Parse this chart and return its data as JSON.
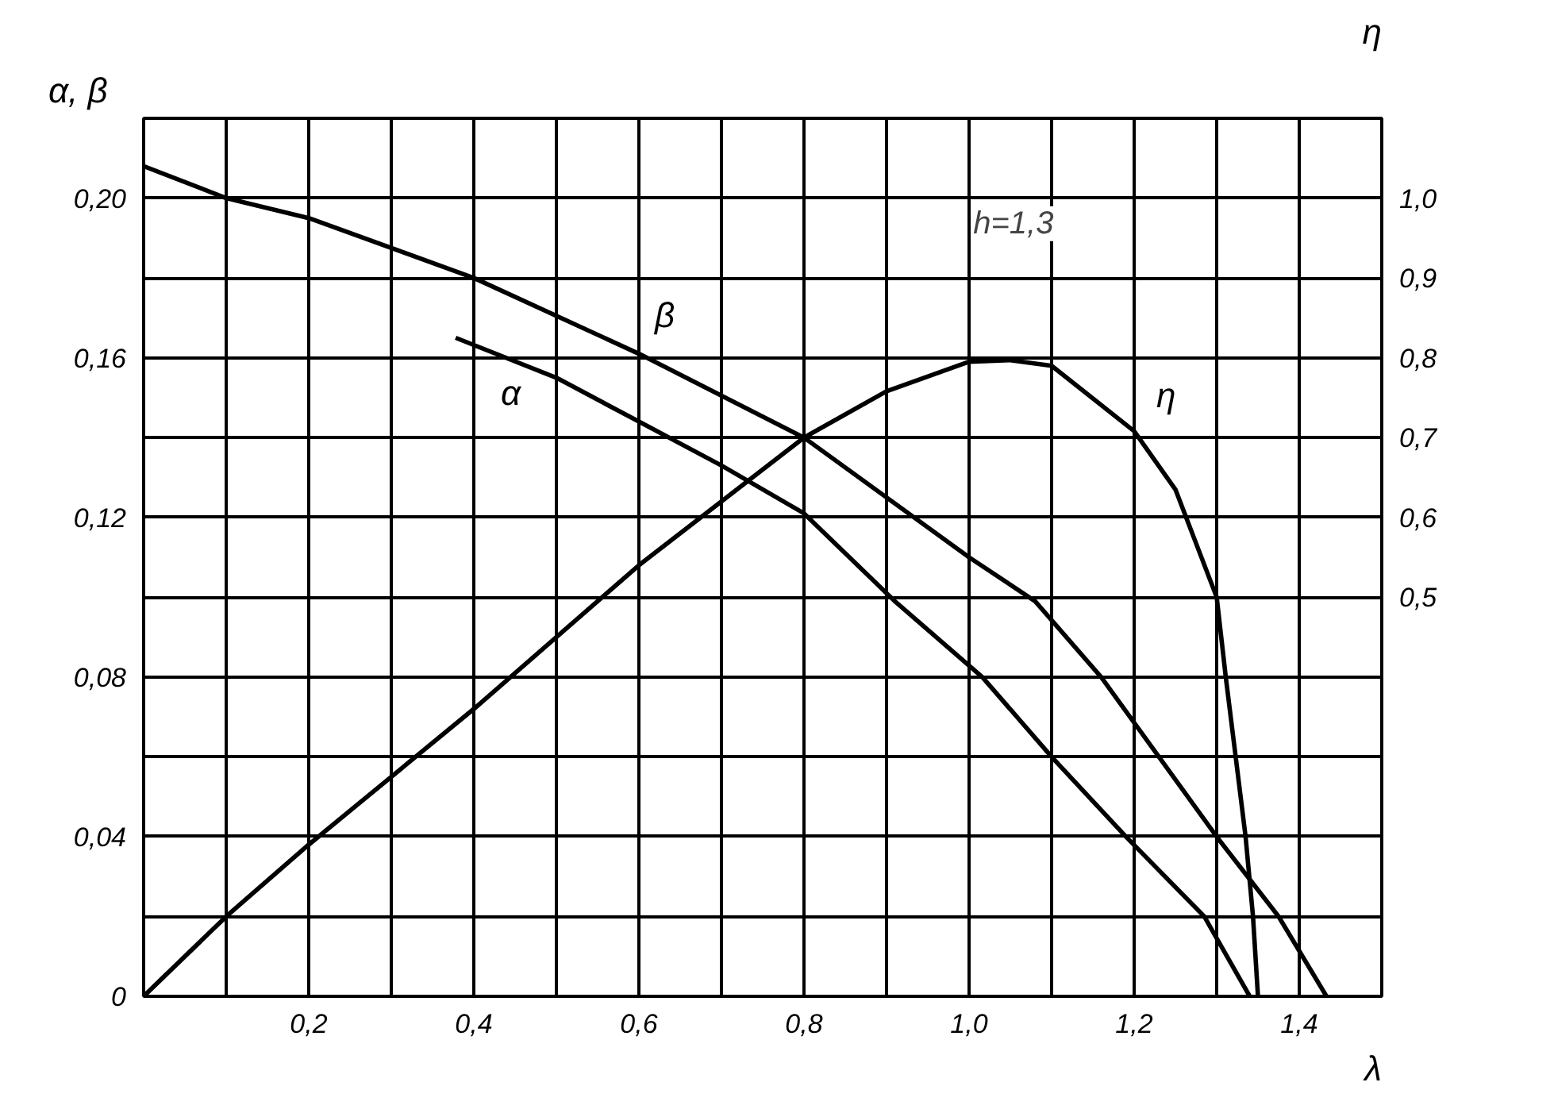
{
  "chart_data": {
    "type": "line",
    "xlabel": "λ",
    "ylabel": "α, β",
    "y2label": "η",
    "annotations": [
      "h=1,3"
    ],
    "xlim": [
      0,
      1.5
    ],
    "ylim": [
      0,
      0.22
    ],
    "y2lim": [
      0,
      1.1
    ],
    "xticks": [
      {
        "value": 0.1,
        "label": null
      },
      {
        "value": 0.2,
        "label": "0,2"
      },
      {
        "value": 0.3,
        "label": null
      },
      {
        "value": 0.4,
        "label": "0,4"
      },
      {
        "value": 0.5,
        "label": null
      },
      {
        "value": 0.6,
        "label": "0,6"
      },
      {
        "value": 0.7,
        "label": null
      },
      {
        "value": 0.8,
        "label": "0,8"
      },
      {
        "value": 0.9,
        "label": null
      },
      {
        "value": 1.0,
        "label": "1,0"
      },
      {
        "value": 1.1,
        "label": null
      },
      {
        "value": 1.2,
        "label": "1,2"
      },
      {
        "value": 1.3,
        "label": null
      },
      {
        "value": 1.4,
        "label": "1,4"
      }
    ],
    "yticks": [
      0,
      {
        "value": 0.02,
        "label": null
      },
      {
        "value": 0.04,
        "label": "0,04"
      },
      {
        "value": 0.06,
        "label": null
      },
      {
        "value": 0.08,
        "label": "0,08"
      },
      {
        "value": 0.1,
        "label": null
      },
      {
        "value": 0.12,
        "label": "0,12"
      },
      {
        "value": 0.14,
        "label": null
      },
      {
        "value": 0.16,
        "label": "0,16"
      },
      {
        "value": 0.18,
        "label": null
      },
      {
        "value": 0.2,
        "label": "0,20"
      }
    ],
    "y2ticks": [
      {
        "value": 0.5,
        "label": "0,5"
      },
      {
        "value": 0.6,
        "label": "0,6"
      },
      {
        "value": 0.7,
        "label": "0,7"
      },
      {
        "value": 0.8,
        "label": "0,8"
      },
      {
        "value": 0.9,
        "label": "0,9"
      },
      {
        "value": 1.0,
        "label": "1,0"
      }
    ],
    "grid": true,
    "marker": "none",
    "line_style": "solid",
    "series": [
      {
        "name": "β",
        "color": "#000000",
        "x": [
          0,
          0.1,
          0.2,
          0.4,
          0.6,
          0.8,
          1.0,
          1.08,
          1.16,
          1.23,
          1.3,
          1.375,
          1.433
        ],
        "values": [
          0.208,
          0.2,
          0.195,
          0.18,
          0.161,
          0.14,
          0.11,
          0.099,
          0.08,
          0.06,
          0.04,
          0.02,
          0
        ]
      },
      {
        "name": "α",
        "color": "#000000",
        "x": [
          0.378,
          0.5,
          0.6,
          0.7,
          0.8,
          0.91,
          1.016,
          1.1,
          1.19,
          1.285,
          1.34
        ],
        "values": [
          0.165,
          0.155,
          0.144,
          0.133,
          0.121,
          0.099,
          0.08,
          0.06,
          0.04,
          0.02,
          0
        ]
      },
      {
        "name": "η",
        "color": "#000000",
        "axis": "y2",
        "x": [
          0,
          0.1,
          0.2,
          0.4,
          0.6,
          0.8,
          0.9,
          1.0,
          1.05,
          1.1,
          1.2,
          1.25,
          1.3,
          1.311,
          1.323,
          1.335,
          1.344,
          1.35
        ],
        "values": [
          0,
          0.1,
          0.19,
          0.36,
          0.54,
          0.7,
          0.758,
          0.795,
          0.797,
          0.79,
          0.708,
          0.635,
          0.5,
          0.4,
          0.3,
          0.2,
          0.1,
          0
        ]
      }
    ]
  }
}
